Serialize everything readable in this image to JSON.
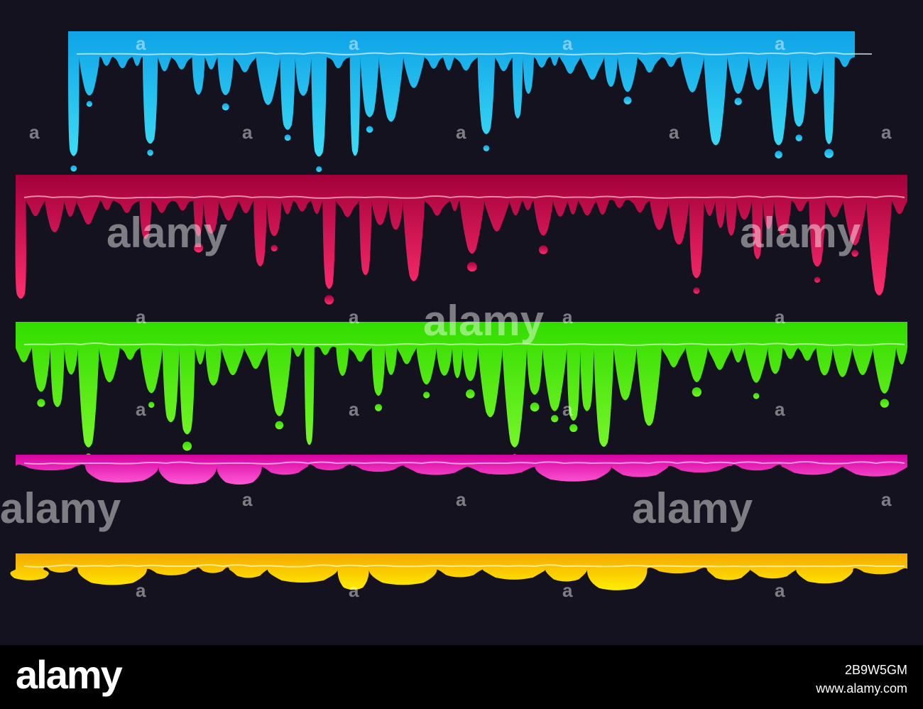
{
  "artwork": {
    "strips": [
      {
        "name": "blue-drip",
        "color_top": "#0fa3e8",
        "color_bottom": "#3ddcf5",
        "highlight": "#d8f7ff"
      },
      {
        "name": "red-drip",
        "color_top": "#a3003a",
        "color_bottom": "#ff2e6e",
        "highlight": "#ffc3d6"
      },
      {
        "name": "green-drip",
        "color_top": "#33dd00",
        "color_bottom": "#77f52a",
        "highlight": "#d9ffc2"
      },
      {
        "name": "pink-drip",
        "color_top": "#d4009e",
        "color_bottom": "#ff5ad6",
        "highlight": "#ffd0f2"
      },
      {
        "name": "yellow-drip",
        "color_top": "#f5a800",
        "color_bottom": "#ffee00",
        "highlight": "#fffbd0"
      }
    ],
    "background": "#14121f"
  },
  "watermark": {
    "word": "alamy",
    "letter": "a"
  },
  "footer": {
    "logo": "alamy",
    "image_id": "2B9W5GM",
    "site": "www.alamy.com"
  }
}
